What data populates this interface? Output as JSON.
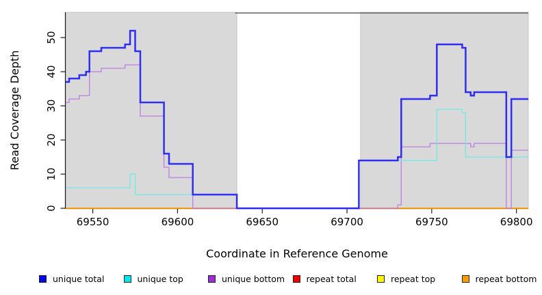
{
  "chart_data": {
    "type": "line",
    "step": true,
    "title": "",
    "xlabel": "Coordinate in Reference Genome",
    "ylabel": "Read Coverage Depth",
    "x_range": [
      69534,
      69807
    ],
    "y_range": [
      0,
      57.4
    ],
    "x_ticks": [
      69550,
      69600,
      69650,
      69700,
      69750,
      69800
    ],
    "y_ticks": [
      0,
      10,
      20,
      30,
      40,
      50
    ],
    "grid": false,
    "panel_background": "#ffffff",
    "shaded_regions": [
      {
        "x0": 69534,
        "x1": 69635,
        "color": "#d9d9d9",
        "border": "#bbbbbb"
      },
      {
        "x0": 69708,
        "x1": 69807,
        "color": "#d9d9d9",
        "border": "#bbbbbb"
      }
    ],
    "top_rule": {
      "x0": 69634,
      "x1": 69807,
      "color": "#606060"
    },
    "series": [
      {
        "name": "repeat total",
        "line_color": "#e02020",
        "width": 1.3,
        "points": [
          [
            69534,
            0
          ]
        ]
      },
      {
        "name": "repeat top",
        "line_color": "#f0e400",
        "width": 1.3,
        "points": [
          [
            69534,
            0
          ]
        ]
      },
      {
        "name": "repeat bottom",
        "line_color": "#ff9d00",
        "width": 1.7,
        "points": [
          [
            69534,
            0
          ]
        ]
      },
      {
        "name": "unique bottom",
        "line_color": "#bd7ce4",
        "width": 1.3,
        "points": [
          [
            69534,
            31
          ],
          [
            69536,
            32
          ],
          [
            69542,
            33
          ],
          [
            69548,
            40
          ],
          [
            69555,
            41
          ],
          [
            69569,
            42
          ],
          [
            69578,
            27
          ],
          [
            69592,
            12
          ],
          [
            69595,
            9
          ],
          [
            69609,
            0
          ],
          [
            69730,
            1
          ],
          [
            69732,
            18
          ],
          [
            69749,
            19
          ],
          [
            69773,
            18
          ],
          [
            69775,
            19
          ],
          [
            69794,
            0
          ],
          [
            69797,
            17
          ]
        ]
      },
      {
        "name": "unique top",
        "line_color": "#70e9e9",
        "width": 1.3,
        "points": [
          [
            69534,
            6
          ],
          [
            69572,
            10
          ],
          [
            69575,
            4
          ],
          [
            69635,
            0
          ],
          [
            69707,
            14
          ],
          [
            69753,
            29
          ],
          [
            69768,
            28
          ],
          [
            69770,
            15
          ]
        ]
      },
      {
        "name": "unique total",
        "line_color": "#2e2ef2",
        "width": 2.5,
        "points": [
          [
            69534,
            37
          ],
          [
            69536,
            38
          ],
          [
            69542,
            39
          ],
          [
            69546,
            40
          ],
          [
            69548,
            46
          ],
          [
            69555,
            47
          ],
          [
            69569,
            48
          ],
          [
            69572,
            52
          ],
          [
            69575,
            46
          ],
          [
            69578,
            31
          ],
          [
            69592,
            16
          ],
          [
            69595,
            13
          ],
          [
            69609,
            4
          ],
          [
            69635,
            0
          ],
          [
            69707,
            14
          ],
          [
            69730,
            15
          ],
          [
            69732,
            32
          ],
          [
            69749,
            33
          ],
          [
            69753,
            48
          ],
          [
            69768,
            47
          ],
          [
            69770,
            34
          ],
          [
            69773,
            33
          ],
          [
            69775,
            34
          ],
          [
            69794,
            15
          ],
          [
            69797,
            32
          ]
        ]
      }
    ],
    "legend_position": "bottom"
  },
  "legend": {
    "items": [
      {
        "label": "unique total",
        "color": "#0505e8"
      },
      {
        "label": "unique top",
        "color": "#00e8ee"
      },
      {
        "label": "unique bottom",
        "color": "#9a2fd4"
      },
      {
        "label": "repeat total",
        "color": "#ee0000"
      },
      {
        "label": "repeat top",
        "color": "#fdf400"
      },
      {
        "label": "repeat bottom",
        "color": "#ff9d00"
      }
    ]
  }
}
